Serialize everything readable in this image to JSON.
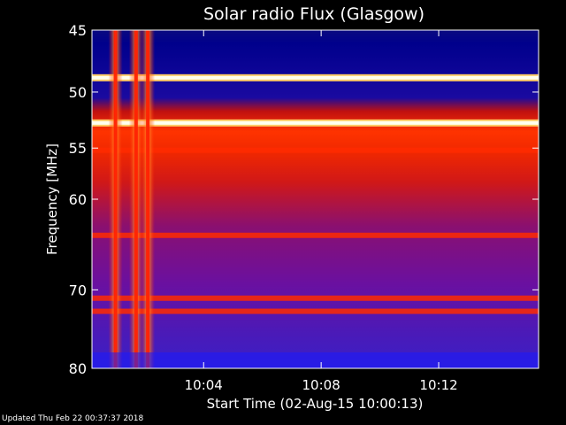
{
  "footer": {
    "updated": "Updated Thu Feb 22 00:37:37 2018"
  },
  "chart_data": {
    "type": "heatmap",
    "title": "Solar radio Flux (Glasgow)",
    "xlabel": "Start Time (02-Aug-15 10:00:13)",
    "ylabel": "Frequency [MHz]",
    "x_ticks": [
      "10:04",
      "10:08",
      "10:12"
    ],
    "y_ticks": [
      45,
      50,
      55,
      60,
      70,
      80
    ],
    "xlim_minutes_after_10_00": [
      0.2,
      15.4
    ],
    "ylim_mhz": [
      45,
      80
    ],
    "y_scale": "log",
    "grid": false,
    "colormap": [
      "#000033",
      "#0000ff",
      "#5500aa",
      "#aa0033",
      "#ff2200",
      "#ff8800",
      "#ffff99",
      "#ffffff"
    ],
    "bright_bands_mhz": [
      48.8,
      52.7
    ],
    "red_bands_mhz": [
      55.2,
      63.8,
      71.0,
      72.6
    ],
    "bursts_minutes": [
      1.0,
      1.7,
      2.1
    ]
  }
}
